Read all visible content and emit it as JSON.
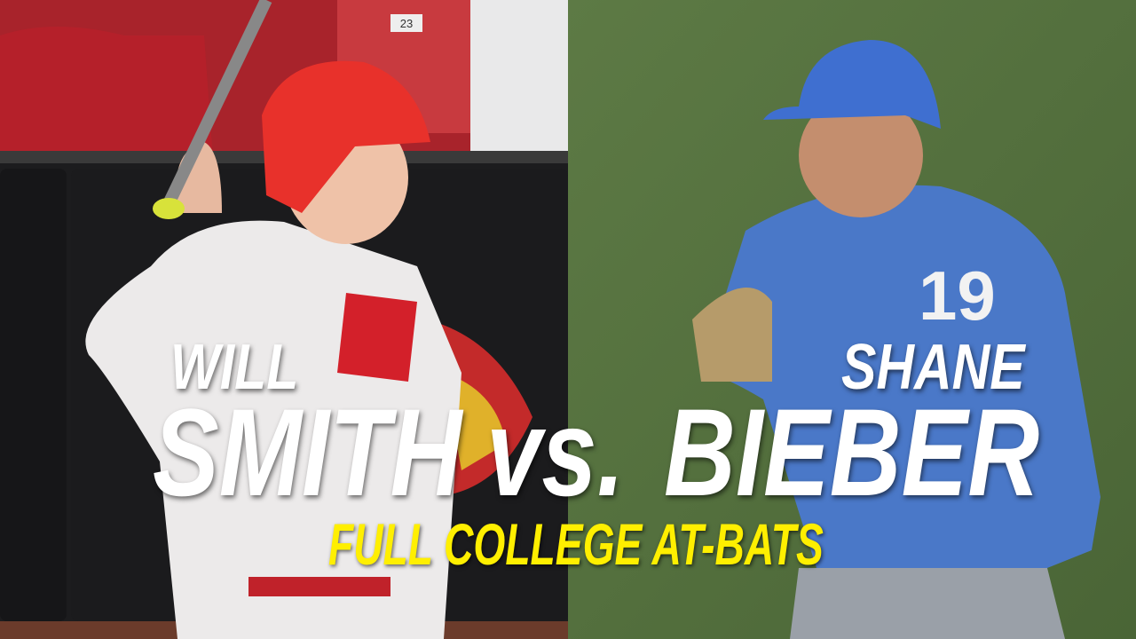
{
  "thumbnail": {
    "left_player": {
      "first_name": "WILL",
      "last_name": "SMITH"
    },
    "versus": "vs.",
    "right_player": {
      "first_name": "SHANE",
      "last_name": "BIEBER"
    },
    "subtitle": "FULL COLLEGE AT-BATS",
    "seat_number": "23",
    "jersey_number": "19",
    "colors": {
      "title_text": "#ffffff",
      "subtitle_text": "#ffef00",
      "left_helmet": "#e8312b",
      "right_jersey": "#4a78c8",
      "grass": "#55703e"
    }
  }
}
